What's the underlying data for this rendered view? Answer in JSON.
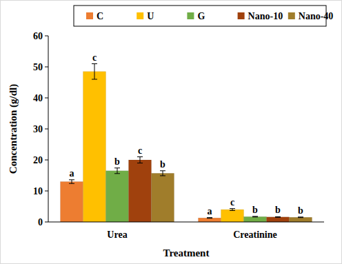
{
  "chart_data": {
    "type": "bar",
    "categories": [
      "Urea",
      "Creatinine"
    ],
    "x_label": "Treatment",
    "y_label": "Concentration (g/dl)",
    "ylim": [
      0,
      60
    ],
    "yticks": [
      0,
      10,
      20,
      30,
      40,
      50,
      60
    ],
    "legend": "top",
    "grid": false,
    "series": [
      {
        "name": "C",
        "color": "#ed7d31",
        "values": [
          13.0,
          1.3
        ],
        "errors": [
          0.6,
          0.1
        ],
        "letters": [
          "a",
          "a"
        ]
      },
      {
        "name": "U",
        "color": "#ffc000",
        "values": [
          48.5,
          4.0
        ],
        "errors": [
          2.5,
          0.3
        ],
        "letters": [
          "c",
          "c"
        ]
      },
      {
        "name": "G",
        "color": "#70ad47",
        "values": [
          16.5,
          1.7
        ],
        "errors": [
          0.9,
          0.1
        ],
        "letters": [
          "b",
          "b"
        ]
      },
      {
        "name": "Nano-10",
        "color": "#a0410d",
        "values": [
          20.0,
          1.6
        ],
        "errors": [
          1.0,
          0.1
        ],
        "letters": [
          "c",
          "b"
        ]
      },
      {
        "name": "Nano-40",
        "color": "#a07d2b",
        "values": [
          15.7,
          1.5
        ],
        "errors": [
          0.8,
          0.1
        ],
        "letters": [
          "b",
          "b"
        ]
      }
    ]
  }
}
